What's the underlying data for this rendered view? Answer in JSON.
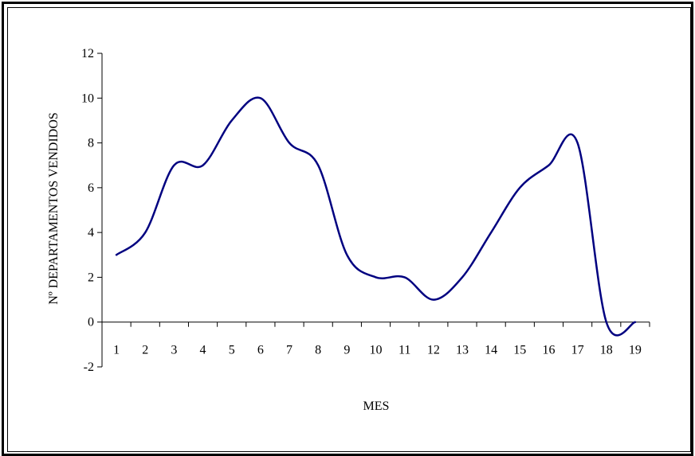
{
  "chart_data": {
    "type": "line",
    "title": "",
    "xlabel": "MES",
    "ylabel": "Nº DEPARTAMENTOS VENDIDOS",
    "x": [
      1,
      2,
      3,
      4,
      5,
      6,
      7,
      8,
      9,
      10,
      11,
      12,
      13,
      14,
      15,
      16,
      17,
      18,
      19
    ],
    "series": [
      {
        "values": [
          3,
          4,
          7,
          7,
          9,
          10,
          8,
          7,
          3,
          2,
          2,
          1,
          2,
          4,
          6,
          7,
          8,
          0,
          0
        ]
      }
    ],
    "ylim": [
      -2,
      12
    ],
    "yticks": [
      -2,
      0,
      2,
      4,
      6,
      8,
      10,
      12
    ],
    "smooth": true,
    "grid": false,
    "legend": "none",
    "line_color": "#000080"
  }
}
